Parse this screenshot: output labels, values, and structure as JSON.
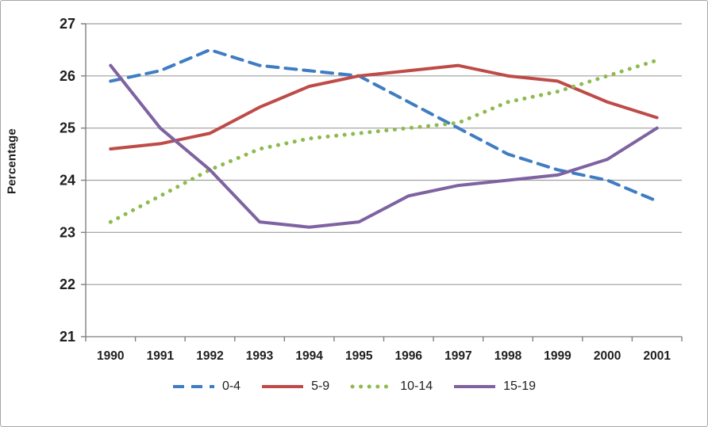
{
  "chart_data": {
    "type": "line",
    "title": "",
    "ylabel": "Percentage",
    "xlabel": "",
    "x": [
      1990,
      1991,
      1992,
      1993,
      1994,
      1995,
      1996,
      1997,
      1998,
      1999,
      2000,
      2001
    ],
    "ylim": [
      21,
      27
    ],
    "ytick_step": 1,
    "grid": true,
    "legend_position": "bottom",
    "series": [
      {
        "name": "0-4",
        "color": "#3F7DC3",
        "style": "dashed",
        "dash": "14 9",
        "width": 4,
        "values": [
          25.9,
          26.1,
          26.5,
          26.2,
          26.1,
          26.0,
          25.5,
          25.0,
          24.5,
          24.2,
          24.0,
          23.6
        ]
      },
      {
        "name": "5-9",
        "color": "#BE4B48",
        "style": "solid",
        "dash": "",
        "width": 4,
        "values": [
          24.6,
          24.7,
          24.9,
          25.4,
          25.8,
          26.0,
          26.1,
          26.2,
          26.0,
          25.9,
          25.5,
          25.2
        ]
      },
      {
        "name": "10-14",
        "color": "#8FBA4E",
        "style": "dotted",
        "dash": "0.1 10.5",
        "width": 5,
        "values": [
          23.2,
          23.7,
          24.2,
          24.6,
          24.8,
          24.9,
          25.0,
          25.1,
          25.5,
          25.7,
          26.0,
          26.3
        ]
      },
      {
        "name": "15-19",
        "color": "#7E62A1",
        "style": "solid",
        "dash": "",
        "width": 4,
        "values": [
          26.2,
          25.0,
          24.2,
          23.2,
          23.1,
          23.2,
          23.7,
          23.9,
          24.0,
          24.1,
          24.4,
          25.0
        ]
      }
    ]
  },
  "colors": {
    "gridline": "#9e9e9e",
    "axis": "#7f7f7f",
    "text": "#1f1f1f",
    "border": "#a6a6a6"
  }
}
